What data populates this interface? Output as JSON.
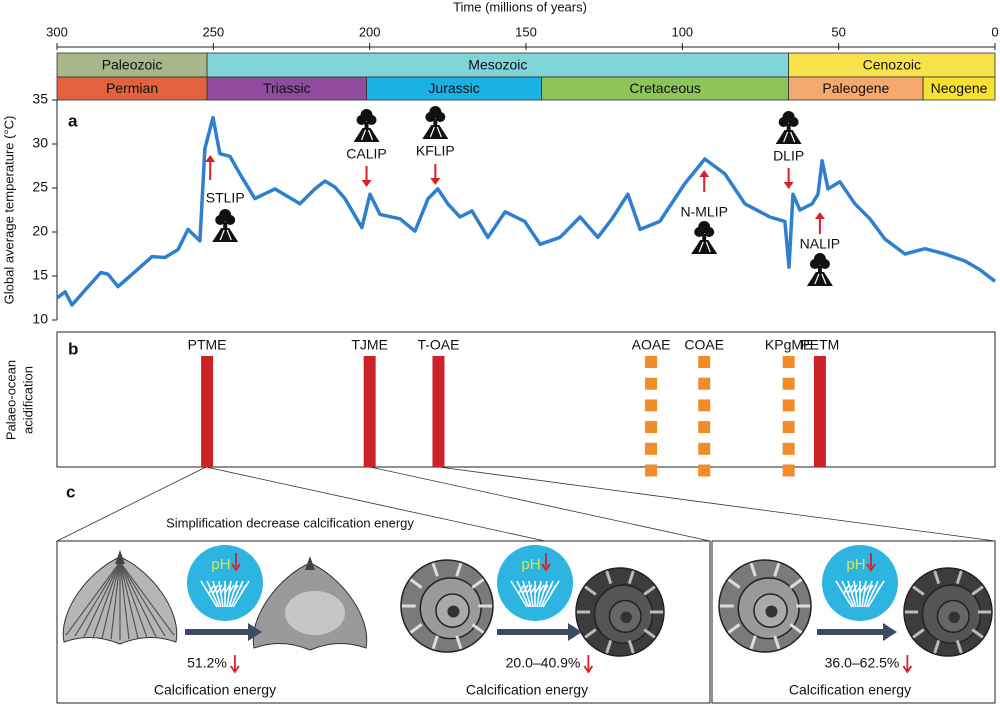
{
  "chart_data": [
    {
      "type": "line",
      "panel_label": "a",
      "x_label": "Time (millions of years)",
      "y_label": "Global average temperature (°C)",
      "xlim": [
        300,
        0
      ],
      "xticks": [
        300,
        250,
        200,
        150,
        100,
        50,
        0
      ],
      "ylim": [
        10,
        35
      ],
      "yticks": [
        10,
        15,
        20,
        25,
        30,
        35
      ],
      "eras": [
        {
          "name": "Paleozoic",
          "start": 300,
          "end": 252,
          "color": "#a9b68a"
        },
        {
          "name": "Mesozoic",
          "start": 252,
          "end": 66,
          "color": "#80d5d9"
        },
        {
          "name": "Cenozoic",
          "start": 66,
          "end": 0,
          "color": "#f8e24c"
        }
      ],
      "periods": [
        {
          "name": "Permian",
          "start": 300,
          "end": 252,
          "color": "#e2613f"
        },
        {
          "name": "Triassic",
          "start": 252,
          "end": 201,
          "color": "#904b9e"
        },
        {
          "name": "Jurassic",
          "start": 201,
          "end": 145,
          "color": "#1ab1e4"
        },
        {
          "name": "Cretaceous",
          "start": 145,
          "end": 66,
          "color": "#8dc55b"
        },
        {
          "name": "Paleogene",
          "start": 66,
          "end": 23,
          "color": "#f6a96f"
        },
        {
          "name": "Neogene",
          "start": 23,
          "end": 0,
          "color": "#f7e032"
        }
      ],
      "series": [
        {
          "color": "#2f7fd0",
          "x": [
            300,
            297.4,
            295.2,
            291,
            286,
            283.7,
            280.5,
            275,
            269.6,
            265.5,
            261.3,
            258.1,
            254.3,
            252.7,
            250.1,
            247.9,
            244.7,
            241.5,
            236.7,
            230.3,
            222.3,
            217.5,
            214.3,
            211.1,
            207.9,
            202.5,
            199.9,
            196.7,
            190.3,
            185.5,
            181.3,
            178.2,
            175.0,
            171.1,
            167.3,
            162.2,
            156.7,
            150.4,
            145.5,
            139.1,
            132.7,
            127.0,
            122.5,
            117.4,
            113.5,
            107.2,
            99.2,
            92.8,
            86.4,
            80.0,
            72.0,
            67.2,
            65.9,
            64.6,
            62.4,
            58.5,
            56.6,
            55.3,
            53.4,
            49.6,
            44.8,
            40.0,
            35.2,
            28.8,
            22.4,
            16.0,
            9.6,
            4.8,
            0
          ],
          "values": [
            12.5,
            13.2,
            11.7,
            13.4,
            15.4,
            15.2,
            13.8,
            15.5,
            17.2,
            17.1,
            18.0,
            20.3,
            19.0,
            29.5,
            33.0,
            28.9,
            28.6,
            26.6,
            23.8,
            24.9,
            23.2,
            24.9,
            25.8,
            25.1,
            23.8,
            20.5,
            24.3,
            22.0,
            21.5,
            20.1,
            23.8,
            24.9,
            23.2,
            21.7,
            22.4,
            19.4,
            22.3,
            21.2,
            18.6,
            19.4,
            21.7,
            19.4,
            21.5,
            24.3,
            20.3,
            21.2,
            25.5,
            28.3,
            26.6,
            23.2,
            21.7,
            21.2,
            16.0,
            24.3,
            22.5,
            23.2,
            24.3,
            28.1,
            24.9,
            25.7,
            23.2,
            21.5,
            19.2,
            17.5,
            18.1,
            17.5,
            16.7,
            15.7,
            14.4
          ]
        }
      ],
      "annotations": [
        {
          "label": "STLIP",
          "time": 251
        },
        {
          "label": "CALIP",
          "time": 201
        },
        {
          "label": "KFLIP",
          "time": 179
        },
        {
          "label": "N-MLIP",
          "time": 93
        },
        {
          "label": "DLIP",
          "time": 66
        },
        {
          "label": "NALIP",
          "time": 56
        }
      ]
    },
    {
      "type": "event",
      "panel_label": "b",
      "y_label": [
        "Palaeo-ocean",
        "acidification"
      ],
      "xlim": [
        300,
        0
      ],
      "events": [
        {
          "label": "PTME",
          "time": 252,
          "style": "solid",
          "color": "#cc2229"
        },
        {
          "label": "TJME",
          "time": 200,
          "style": "solid",
          "color": "#cc2229"
        },
        {
          "label": "T-OAE",
          "time": 178,
          "style": "solid",
          "color": "#cc2229"
        },
        {
          "label": "AOAE",
          "time": 110,
          "style": "dashed",
          "color": "#f28c28"
        },
        {
          "label": "COAE",
          "time": 93,
          "style": "dashed",
          "color": "#f28c28"
        },
        {
          "label": "KPgME",
          "time": 66,
          "style": "dashed",
          "color": "#f28c28"
        },
        {
          "label": "PETM",
          "time": 56,
          "style": "solid",
          "color": "#cc2229"
        }
      ]
    }
  ],
  "panel_c": {
    "panel_label": "c",
    "caption": "Simplification decrease calcification energy",
    "items": [
      {
        "ph": "pH",
        "change": "51.2%",
        "footer": "Calcification energy"
      },
      {
        "ph": "pH",
        "change": "20.0–40.9%",
        "footer": "Calcification energy"
      },
      {
        "ph": "pH",
        "change": "36.0–62.5%",
        "footer": "Calcification energy"
      }
    ]
  }
}
